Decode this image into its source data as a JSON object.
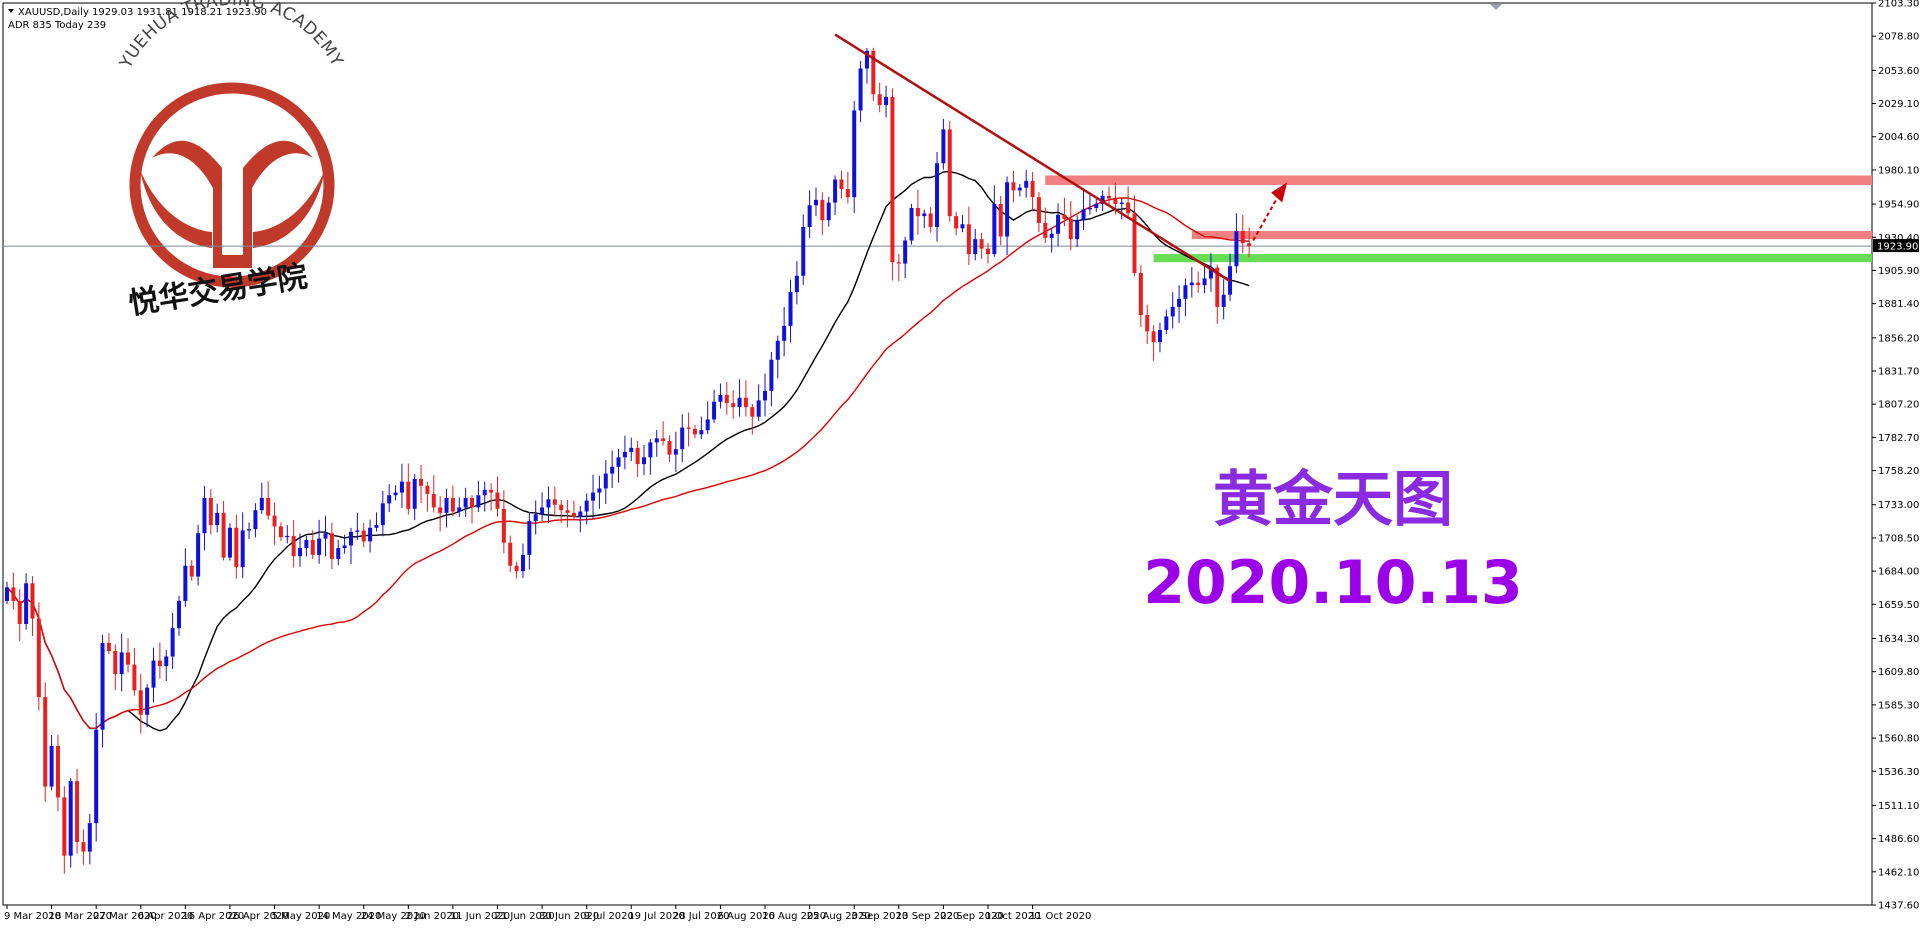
{
  "header": {
    "symbol_line": "XAUUSD,Daily  1929.03 1931.81 1918.21 1923.90",
    "adr_line": "ADR 835  Today 239"
  },
  "logo": {
    "arc_text": "YUEHUA TRADING ACADEMY",
    "cn_text": "悦华交易学院",
    "color": "#c0392b"
  },
  "overlay": {
    "title_cn": "黄金天图",
    "date_text": "2020.10.13",
    "title_color": "#8a2be2",
    "date_color": "#9b00e8"
  },
  "colors": {
    "bull": "#1010dd",
    "bear": "#e82020",
    "ma_fast": "#000000",
    "ma_slow": "#e00000",
    "trendline": "#b01010",
    "resistance_zone": "#f08080",
    "support_zone": "#66dd55",
    "arrow": "#cc0000",
    "price_line": "#7a8a99"
  },
  "chart_data": {
    "type": "candlestick",
    "symbol": "XAUUSD",
    "timeframe": "Daily",
    "last_price": 1923.9,
    "ylim": [
      1437.6,
      2103.3
    ],
    "y_ticks": [
      2103.3,
      2078.8,
      2053.6,
      2029.1,
      2004.6,
      1980.1,
      1954.9,
      1930.4,
      1905.9,
      1881.4,
      1856.2,
      1831.7,
      1807.2,
      1782.7,
      1758.2,
      1733.0,
      1708.5,
      1684.0,
      1659.5,
      1634.3,
      1609.8,
      1585.3,
      1560.8,
      1536.3,
      1511.1,
      1486.6,
      1462.1,
      1437.6
    ],
    "x_ticks": [
      "9 Mar 2020",
      "18 Mar 2020",
      "27 Mar 2020",
      "6 Apr 2020",
      "16 Apr 2020",
      "26 Apr 2020",
      "5 May 2020",
      "14 May 2020",
      "24 May 2020",
      "2 Jun 2020",
      "11 Jun 2020",
      "21 Jun 2020",
      "30 Jun 2020",
      "9 Jul 2020",
      "19 Jul 2020",
      "28 Jul 2020",
      "6 Aug 2020",
      "16 Aug 2020",
      "25 Aug 2020",
      "3 Sep 2020",
      "13 Sep 2020",
      "22 Sep 2020",
      "1 Oct 2020",
      "11 Oct 2020"
    ],
    "closes": [
      1672,
      1662,
      1645,
      1675,
      1649,
      1591,
      1525,
      1555,
      1517,
      1474,
      1529,
      1484,
      1477,
      1498,
      1567,
      1631,
      1625,
      1608,
      1624,
      1615,
      1596,
      1578,
      1598,
      1618,
      1614,
      1621,
      1642,
      1662,
      1688,
      1680,
      1712,
      1738,
      1718,
      1727,
      1694,
      1716,
      1687,
      1714,
      1715,
      1729,
      1738,
      1725,
      1717,
      1709,
      1710,
      1695,
      1701,
      1707,
      1696,
      1708,
      1712,
      1693,
      1701,
      1703,
      1713,
      1714,
      1706,
      1716,
      1718,
      1734,
      1740,
      1742,
      1750,
      1730,
      1752,
      1747,
      1741,
      1731,
      1727,
      1738,
      1728,
      1731,
      1738,
      1731,
      1740,
      1744,
      1742,
      1730,
      1705,
      1688,
      1684,
      1696,
      1721,
      1726,
      1731,
      1737,
      1733,
      1729,
      1727,
      1724,
      1728,
      1736,
      1742,
      1745,
      1756,
      1761,
      1768,
      1772,
      1775,
      1763,
      1768,
      1779,
      1782,
      1780,
      1770,
      1774,
      1790,
      1789,
      1785,
      1788,
      1796,
      1809,
      1814,
      1808,
      1805,
      1812,
      1805,
      1798,
      1810,
      1817,
      1840,
      1854,
      1865,
      1890,
      1902,
      1938,
      1954,
      1958,
      1943,
      1956,
      1973,
      1966,
      1960,
      2024,
      2055,
      2068,
      2036,
      2028,
      2034,
      1912,
      1911,
      1928,
      1952,
      1946,
      1948,
      1938,
      1985,
      2010,
      1946,
      1937,
      1940,
      1918,
      1929,
      1922,
      1918,
      1955,
      1931,
      1971,
      1965,
      1967,
      1972,
      1960,
      1941,
      1930,
      1933,
      1947,
      1944,
      1929,
      1943,
      1951,
      1952,
      1955,
      1961,
      1959,
      1955,
      1956,
      1948,
      1904,
      1873,
      1861,
      1853,
      1862,
      1872,
      1879,
      1885,
      1895,
      1897,
      1895,
      1900,
      1908,
      1879,
      1888,
      1909,
      1935,
      1926,
      1924
    ]
  }
}
